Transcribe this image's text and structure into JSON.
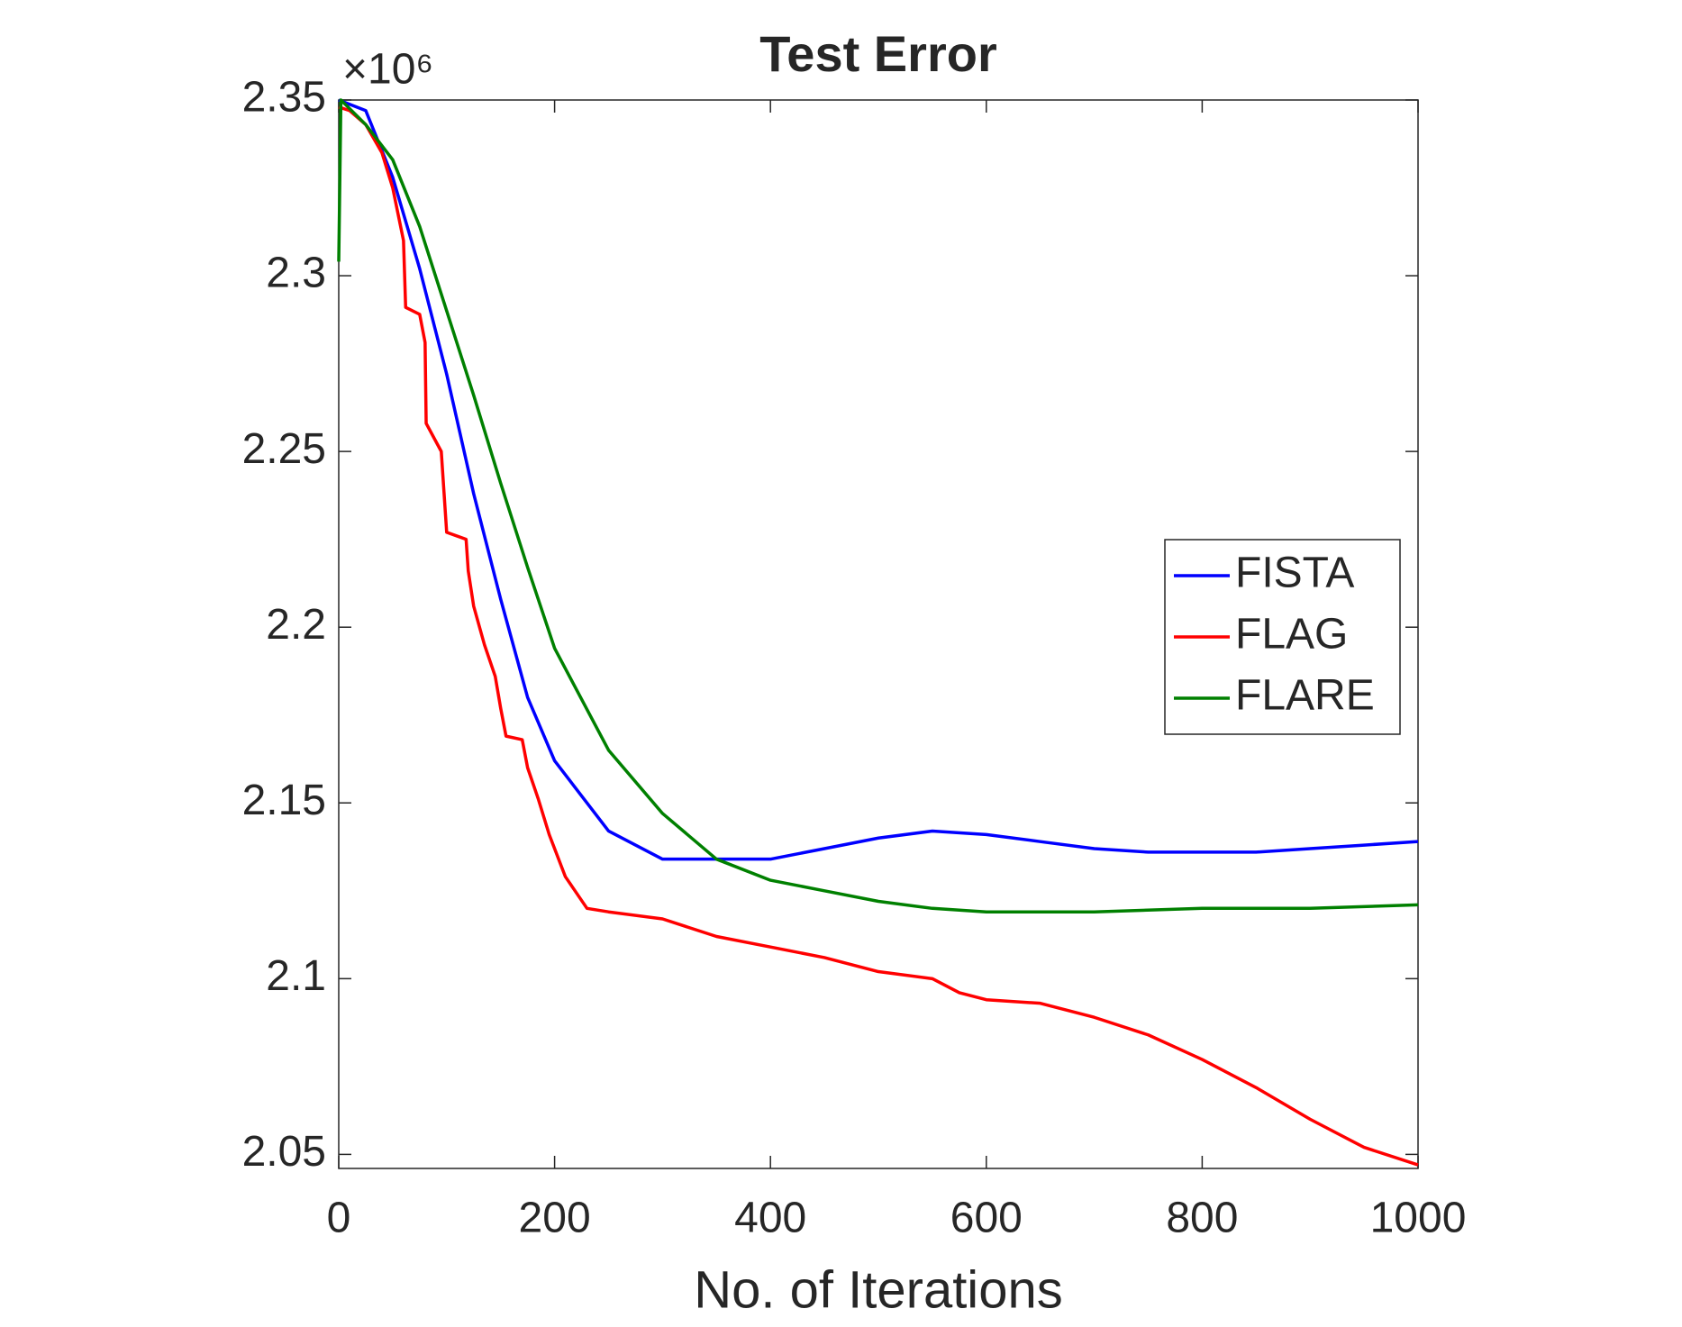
{
  "chart_data": {
    "type": "line",
    "title": "Test Error",
    "xlabel": "No. of Iterations",
    "y_multiplier": "×10⁶",
    "xlim": [
      0,
      1000
    ],
    "xticks": [
      0,
      200,
      400,
      600,
      800,
      1000
    ],
    "ylim": [
      2.046,
      2.35
    ],
    "yticks": [
      2.05,
      2.1,
      2.15,
      2.2,
      2.25,
      2.3,
      2.35
    ],
    "grid": false,
    "legend": "right",
    "series": [
      {
        "name": "FISTA",
        "color": "#0000ff",
        "x": [
          0,
          25,
          50,
          75,
          100,
          125,
          150,
          175,
          200,
          250,
          300,
          350,
          400,
          450,
          500,
          550,
          600,
          650,
          700,
          750,
          800,
          850,
          900,
          950,
          1000
        ],
        "values": [
          2.35,
          2.347,
          2.328,
          2.302,
          2.272,
          2.238,
          2.208,
          2.18,
          2.162,
          2.142,
          2.134,
          2.134,
          2.134,
          2.137,
          2.14,
          2.142,
          2.141,
          2.139,
          2.137,
          2.136,
          2.136,
          2.136,
          2.137,
          2.138,
          2.139
        ]
      },
      {
        "name": "FLAG",
        "color": "#ff0000",
        "x": [
          0,
          10,
          25,
          40,
          50,
          60,
          62,
          75,
          80,
          81,
          95,
          100,
          118,
          120,
          125,
          135,
          145,
          150,
          155,
          170,
          175,
          185,
          195,
          210,
          230,
          250,
          300,
          350,
          400,
          450,
          500,
          550,
          575,
          600,
          650,
          700,
          750,
          800,
          850,
          900,
          950,
          1000
        ],
        "values": [
          2.348,
          2.347,
          2.343,
          2.335,
          2.325,
          2.31,
          2.291,
          2.289,
          2.281,
          2.258,
          2.25,
          2.227,
          2.225,
          2.216,
          2.206,
          2.195,
          2.186,
          2.177,
          2.169,
          2.168,
          2.16,
          2.151,
          2.141,
          2.129,
          2.12,
          2.119,
          2.117,
          2.112,
          2.109,
          2.106,
          2.102,
          2.1,
          2.096,
          2.094,
          2.093,
          2.089,
          2.084,
          2.077,
          2.069,
          2.06,
          2.052,
          2.047
        ]
      },
      {
        "name": "FLARE",
        "color": "#008000",
        "x": [
          0,
          2,
          25,
          50,
          75,
          100,
          125,
          150,
          175,
          200,
          250,
          300,
          350,
          400,
          450,
          500,
          550,
          600,
          650,
          700,
          800,
          900,
          1000
        ],
        "values": [
          2.304,
          2.35,
          2.343,
          2.333,
          2.314,
          2.29,
          2.266,
          2.241,
          2.217,
          2.194,
          2.165,
          2.147,
          2.134,
          2.128,
          2.125,
          2.122,
          2.12,
          2.119,
          2.119,
          2.119,
          2.12,
          2.12,
          2.121
        ]
      }
    ]
  }
}
